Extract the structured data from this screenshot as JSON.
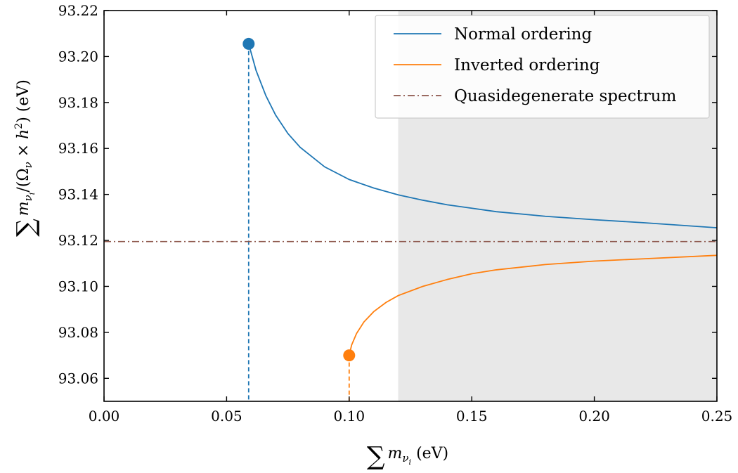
{
  "chart_data": {
    "type": "line",
    "xlabel": "∑ m_νi (eV)",
    "ylabel": "∑ m_νi/(Ω_ν × h²) (eV)",
    "xlim": [
      0.0,
      0.25
    ],
    "ylim": [
      93.05,
      93.22
    ],
    "x_ticks": [
      "0.00",
      "0.05",
      "0.10",
      "0.15",
      "0.20",
      "0.25"
    ],
    "y_ticks": [
      "93.06",
      "93.08",
      "93.10",
      "93.12",
      "93.14",
      "93.16",
      "93.18",
      "93.20",
      "93.22"
    ],
    "grid": false,
    "legend_position": "top-right",
    "shaded_region": {
      "x_from": 0.12,
      "x_to": 0.25,
      "color": "#e8e8e8"
    },
    "series": [
      {
        "name": "Normal ordering",
        "color": "#1f77b4",
        "style": "solid",
        "start_marker": {
          "x": 0.059,
          "y": 93.2055
        },
        "x": [
          0.059,
          0.062,
          0.066,
          0.07,
          0.075,
          0.08,
          0.09,
          0.1,
          0.11,
          0.12,
          0.13,
          0.14,
          0.15,
          0.16,
          0.18,
          0.2,
          0.22,
          0.25
        ],
        "values": [
          93.2055,
          93.194,
          93.183,
          93.1745,
          93.1665,
          93.1605,
          93.152,
          93.1465,
          93.1428,
          93.1398,
          93.1375,
          93.1355,
          93.134,
          93.1325,
          93.1305,
          93.129,
          93.1277,
          93.1255
        ]
      },
      {
        "name": "Inverted ordering",
        "color": "#ff7f0e",
        "style": "solid",
        "start_marker": {
          "x": 0.1,
          "y": 93.07
        },
        "x": [
          0.1,
          0.101,
          0.103,
          0.106,
          0.11,
          0.115,
          0.12,
          0.13,
          0.14,
          0.15,
          0.16,
          0.18,
          0.2,
          0.22,
          0.25
        ],
        "values": [
          93.07,
          93.0745,
          93.0795,
          93.0845,
          93.089,
          93.093,
          93.096,
          93.1,
          93.103,
          93.1055,
          93.1072,
          93.1095,
          93.111,
          93.112,
          93.1135
        ]
      },
      {
        "name": "Quasidegenerate spectrum",
        "color": "#8c564b",
        "style": "dashdot",
        "x": [
          0.0,
          0.25
        ],
        "values": [
          93.1195,
          93.1195
        ]
      }
    ],
    "drop_lines": [
      {
        "x": 0.059,
        "y_top": 93.2055,
        "color": "#1f77b4"
      },
      {
        "x": 0.1,
        "y_top": 93.07,
        "color": "#ff7f0e"
      }
    ]
  }
}
